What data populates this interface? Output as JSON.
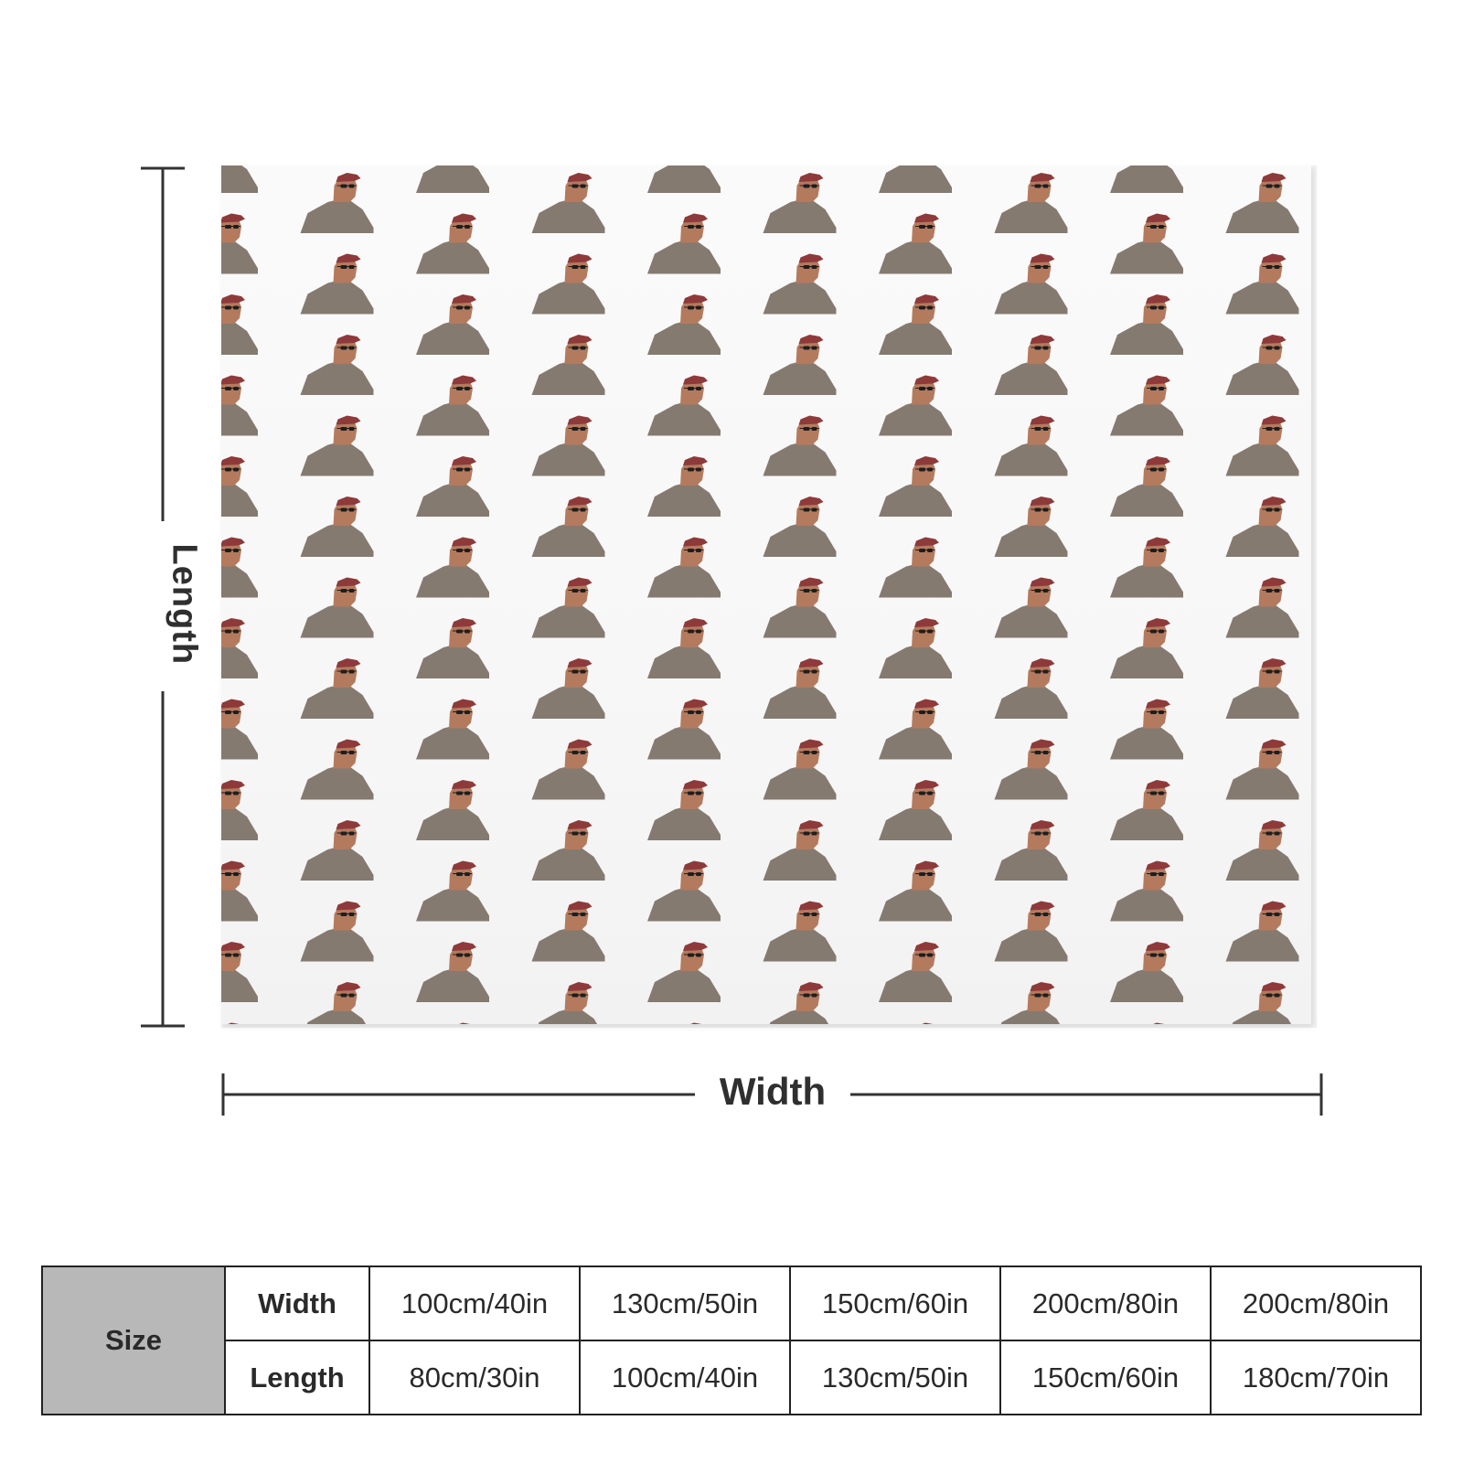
{
  "diagram": {
    "length_label": "Length",
    "width_label": "Width",
    "pattern": {
      "motif": "person-with-cap-and-sunglasses",
      "colors": {
        "shirt": "#857a70",
        "skin": "#b47a5e",
        "cap": "#8e3a3a",
        "sunglasses": "#1e1e1e",
        "background": "#fafafa"
      }
    }
  },
  "size_table": {
    "title": "Size",
    "rows": [
      {
        "label": "Width",
        "values": [
          "100cm/40in",
          "130cm/50in",
          "150cm/60in",
          "200cm/80in",
          "200cm/80in"
        ]
      },
      {
        "label": "Length",
        "values": [
          "80cm/30in",
          "100cm/40in",
          "130cm/50in",
          "150cm/60in",
          "180cm/70in"
        ]
      }
    ]
  }
}
